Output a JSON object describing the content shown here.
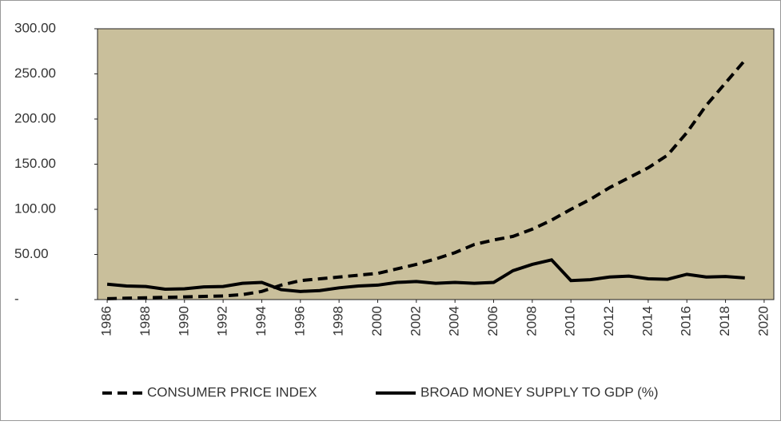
{
  "chart_data": {
    "type": "line",
    "x": [
      1986,
      1987,
      1988,
      1989,
      1990,
      1991,
      1992,
      1993,
      1994,
      1995,
      1996,
      1997,
      1998,
      1999,
      2000,
      2001,
      2002,
      2003,
      2004,
      2005,
      2006,
      2007,
      2008,
      2009,
      2010,
      2011,
      2012,
      2013,
      2014,
      2015,
      2016,
      2017,
      2018,
      2019
    ],
    "series": [
      {
        "name": "CONSUMER PRICE INDEX",
        "color": "#000000",
        "style": "dashed",
        "values": [
          1,
          1.5,
          2,
          2.5,
          3,
          3.5,
          4,
          5.5,
          9,
          16,
          21,
          23,
          25,
          27,
          29,
          34,
          39,
          45,
          52,
          61,
          66,
          70,
          78,
          88,
          100,
          111,
          124,
          135,
          146,
          160,
          185,
          215,
          240,
          265
        ]
      },
      {
        "name": "BROAD MONEY SUPPLY TO GDP (%)",
        "color": "#000000",
        "style": "solid",
        "values": [
          17,
          15,
          14.5,
          11.5,
          12,
          14,
          14.5,
          18,
          19,
          11,
          9,
          10,
          13,
          15,
          16,
          19,
          20,
          18,
          19,
          18,
          19,
          32,
          39,
          44,
          21,
          22,
          25,
          26,
          23,
          22.5,
          28,
          25,
          25.5,
          24
        ]
      }
    ],
    "xlim": [
      1985.5,
      2020.5
    ],
    "xticks": [
      1986,
      1988,
      1990,
      1992,
      1994,
      1996,
      1998,
      2000,
      2002,
      2004,
      2006,
      2008,
      2010,
      2012,
      2014,
      2016,
      2018,
      2020
    ],
    "ylim": [
      0,
      300
    ],
    "yticks": [
      {
        "value": 0,
        "label": "-"
      },
      {
        "value": 50,
        "label": "50.00"
      },
      {
        "value": 100,
        "label": "100.00"
      },
      {
        "value": 150,
        "label": "150.00"
      },
      {
        "value": 200,
        "label": "200.00"
      },
      {
        "value": 250,
        "label": "250.00"
      },
      {
        "value": 300,
        "label": "300.00"
      }
    ],
    "plot_background": "#c9bf9b",
    "legend": "bottom"
  }
}
